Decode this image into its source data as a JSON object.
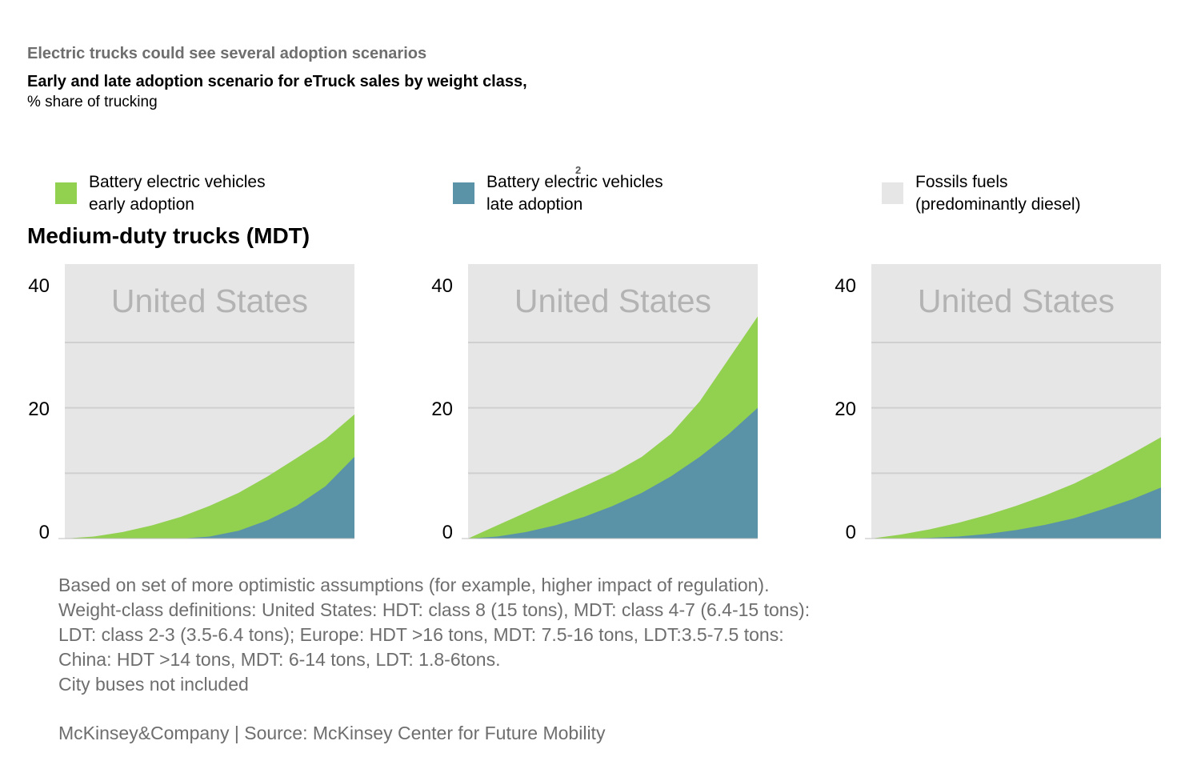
{
  "header": {
    "supertitle": "Electric trucks could see several adoption scenarios",
    "title": "Early and late adoption scenario for eTruck sales by weight class,",
    "subtitle": "% share of trucking",
    "footnote_mark": "2"
  },
  "legend": [
    {
      "label": "Battery electric vehicles\nearly adoption",
      "color": "#92d050"
    },
    {
      "label": "Battery electric vehicles\nlate adoption",
      "color": "#5a93a8"
    },
    {
      "label": "Fossils fuels\n(predominantly diesel)",
      "color": "#e6e6e6"
    }
  ],
  "section_title": "Medium-duty trucks (MDT)",
  "chart_data": [
    {
      "type": "area",
      "title": "United States",
      "ylim": [
        0,
        42
      ],
      "yticks": [
        0,
        20,
        40
      ],
      "x": [
        0,
        1,
        2,
        3,
        4,
        5,
        6,
        7,
        8,
        9,
        10
      ],
      "series": [
        {
          "name": "Battery electric vehicles late adoption",
          "values": [
            0,
            0,
            0,
            0,
            0,
            0.3,
            1.2,
            2.8,
            5.0,
            8.0,
            12.5
          ]
        },
        {
          "name": "Battery electric vehicles early adoption",
          "values": [
            0,
            0.3,
            1.0,
            2.0,
            3.3,
            5.0,
            7.0,
            9.5,
            12.3,
            15.2,
            19.0
          ]
        }
      ],
      "background": "#e6e6e6",
      "grid": true
    },
    {
      "type": "area",
      "title": "United States",
      "ylim": [
        0,
        42
      ],
      "yticks": [
        0,
        20,
        40
      ],
      "x": [
        0,
        1,
        2,
        3,
        4,
        5,
        6,
        7,
        8,
        9,
        10
      ],
      "series": [
        {
          "name": "Battery electric vehicles late adoption",
          "values": [
            0,
            0.3,
            1.0,
            2.0,
            3.3,
            5.0,
            7.0,
            9.5,
            12.5,
            16.0,
            20.0
          ]
        },
        {
          "name": "Battery electric vehicles early adoption",
          "values": [
            0,
            2.0,
            4.0,
            6.0,
            8.0,
            10.0,
            12.5,
            16.0,
            21.0,
            27.5,
            34.0
          ]
        }
      ],
      "background": "#e6e6e6",
      "grid": true
    },
    {
      "type": "area",
      "title": "United States",
      "ylim": [
        0,
        42
      ],
      "yticks": [
        0,
        20,
        40
      ],
      "x": [
        0,
        1,
        2,
        3,
        4,
        5,
        6,
        7,
        8,
        9,
        10
      ],
      "series": [
        {
          "name": "Battery electric vehicles late adoption",
          "values": [
            0,
            0,
            0.1,
            0.3,
            0.7,
            1.3,
            2.1,
            3.1,
            4.5,
            6.0,
            7.8
          ]
        },
        {
          "name": "Battery electric vehicles early adoption",
          "values": [
            0,
            0.6,
            1.4,
            2.4,
            3.6,
            5.0,
            6.6,
            8.4,
            10.6,
            13.0,
            15.5
          ]
        }
      ],
      "background": "#e6e6e6",
      "grid": true
    }
  ],
  "notes": "Based on set of more optimistic assumptions (for example, higher impact of regulation).\nWeight-class definitions: United States: HDT: class 8 (15 tons), MDT: class 4-7 (6.4-15 tons):\nLDT: class 2-3 (3.5-6.4 tons); Europe: HDT >16 tons, MDT: 7.5-16 tons, LDT:3.5-7.5 tons:\nChina: HDT >14 tons, MDT: 6-14 tons, LDT: 1.8-6tons.\nCity buses not included",
  "source": "McKinsey&Company | Source: McKinsey Center for Future Mobility"
}
